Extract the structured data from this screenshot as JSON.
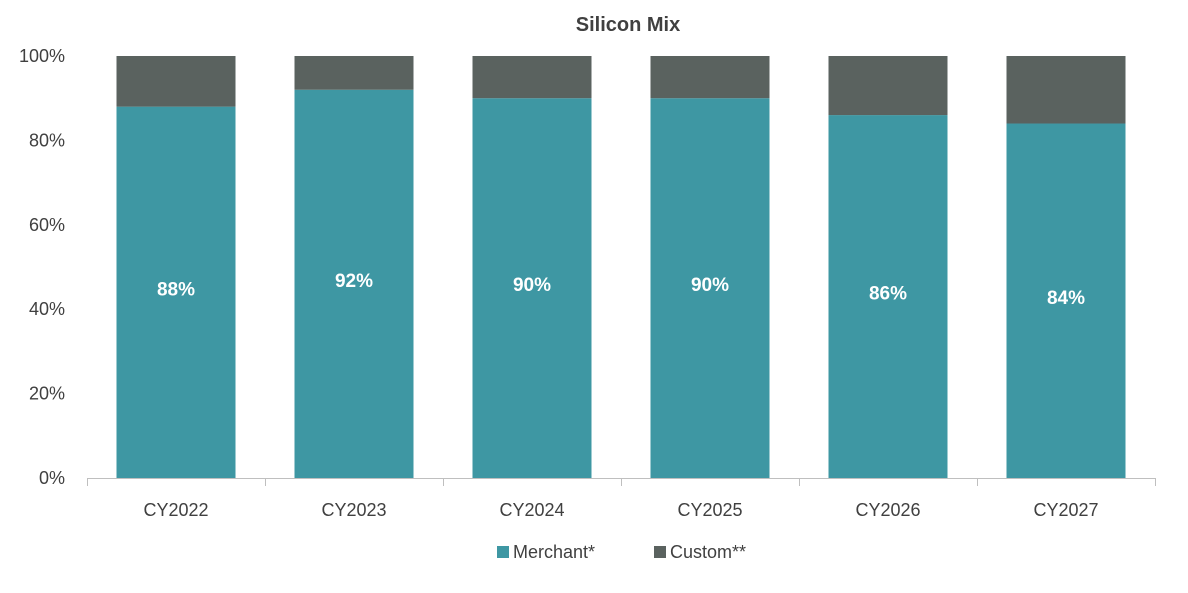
{
  "chart_data": {
    "type": "bar",
    "stacked": true,
    "title": "Silicon Mix",
    "xlabel": "",
    "ylabel": "",
    "categories": [
      "CY2022",
      "CY2023",
      "CY2024",
      "CY2025",
      "CY2026",
      "CY2027"
    ],
    "series": [
      {
        "name": "Merchant*",
        "color": "#3e97a3",
        "values": [
          88,
          92,
          90,
          90,
          86,
          84
        ],
        "labels": [
          "88%",
          "92%",
          "90%",
          "90%",
          "86%",
          "84%"
        ]
      },
      {
        "name": "Custom**",
        "color": "#5a625f",
        "values": [
          12,
          8,
          10,
          10,
          14,
          16
        ]
      }
    ],
    "ylim": [
      0,
      100
    ],
    "yticks": [
      0,
      20,
      40,
      60,
      80,
      100
    ],
    "ytick_labels": [
      "0%",
      "20%",
      "40%",
      "60%",
      "80%",
      "100%"
    ],
    "grid": false,
    "legend": "bottom",
    "label_color": "#ffffff",
    "axis_color": "#bfbfbf",
    "text_color": "#404040"
  }
}
